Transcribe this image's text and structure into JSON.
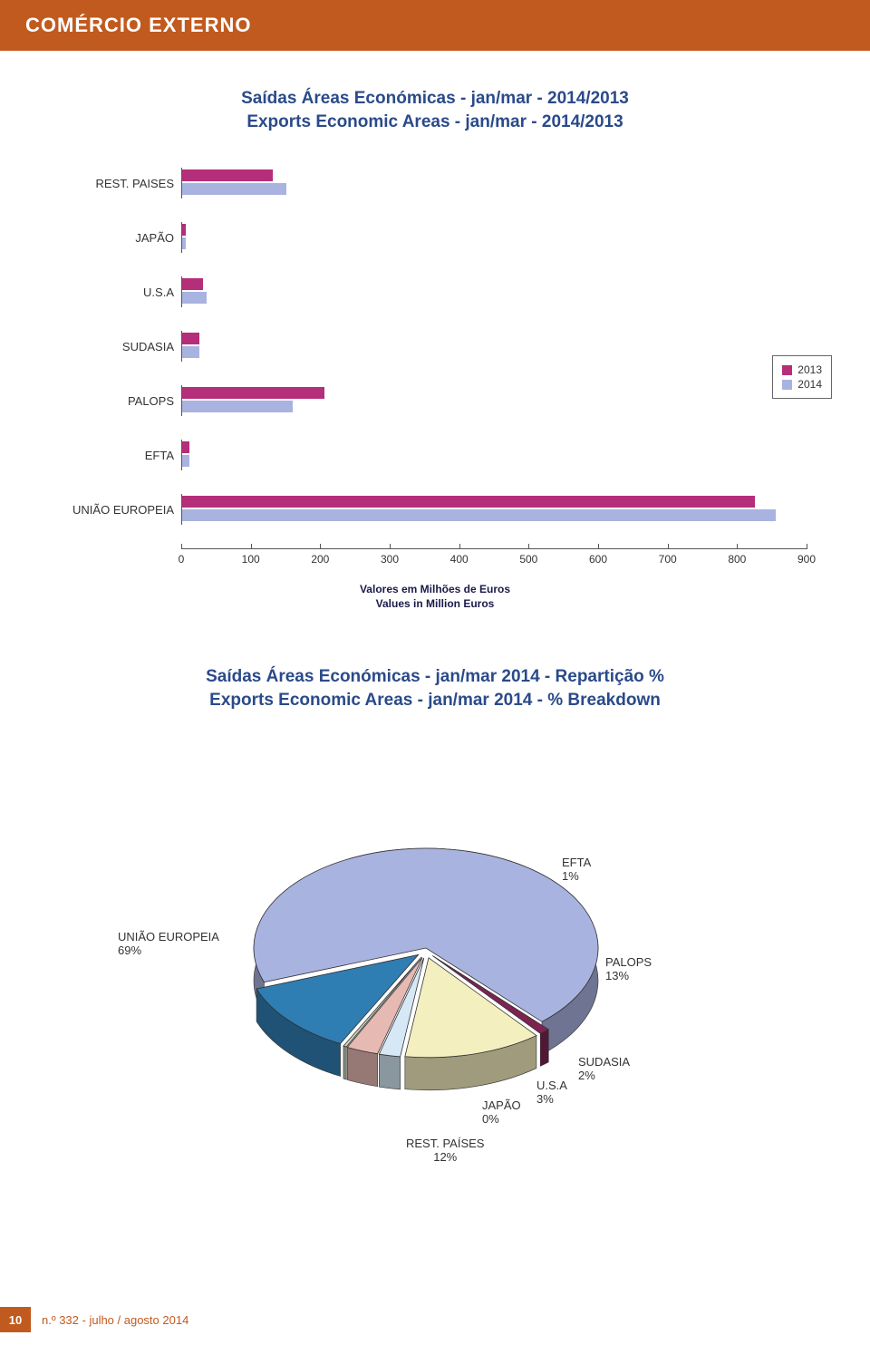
{
  "header": {
    "title": "COMÉRCIO EXTERNO"
  },
  "bar_chart": {
    "title_line1": "Saídas Áreas Económicas - jan/mar - 2014/2013",
    "title_line2": "Exports Economic Areas - jan/mar - 2014/2013",
    "type": "horizontal-bar",
    "xmin": 0,
    "xmax": 900,
    "xtick_step": 100,
    "ticks": [
      0,
      100,
      200,
      300,
      400,
      500,
      600,
      700,
      800,
      900
    ],
    "series": [
      {
        "name": "2013",
        "color": "#b52e7a"
      },
      {
        "name": "2014",
        "color": "#a9b3e0"
      }
    ],
    "categories": [
      {
        "label": "REST. PAISES",
        "v2013": 130,
        "v2014": 150
      },
      {
        "label": "JAPÃO",
        "v2013": 5,
        "v2014": 5
      },
      {
        "label": "U.S.A",
        "v2013": 30,
        "v2014": 35
      },
      {
        "label": "SUDASIA",
        "v2013": 25,
        "v2014": 25
      },
      {
        "label": "PALOPS",
        "v2013": 205,
        "v2014": 160
      },
      {
        "label": "EFTA",
        "v2013": 10,
        "v2014": 10
      },
      {
        "label": "UNIÃO EUROPEIA",
        "v2013": 825,
        "v2014": 855
      }
    ],
    "axis_caption_line1": "Valores em Milhões de Euros",
    "axis_caption_line2": "Values in Million Euros",
    "bar_colors": {
      "s2013": "#b52e7a",
      "s2014": "#a9b3e0"
    }
  },
  "pie_chart": {
    "title_line1": "Saídas Áreas Económicas - jan/mar 2014 - Repartição %",
    "title_line2": "Exports Economic Areas - jan/mar 2014 - % Breakdown",
    "type": "pie-3d-exploded",
    "background_color": "#ffffff",
    "slices": [
      {
        "label": "UNIÃO EUROPEIA",
        "value": 69,
        "color": "#a9b3e0",
        "label_text": "UNIÃO EUROPEIA\n69%"
      },
      {
        "label": "EFTA",
        "value": 1,
        "color": "#7d2352",
        "label_text": "EFTA\n1%"
      },
      {
        "label": "PALOPS",
        "value": 13,
        "color": "#f4efbf",
        "label_text": "PALOPS\n13%"
      },
      {
        "label": "SUDASIA",
        "value": 2,
        "color": "#d6e8f5",
        "label_text": "SUDASIA\n2%"
      },
      {
        "label": "U.S.A",
        "value": 3,
        "color": "#e7b9b3",
        "label_text": "U.S.A\n3%"
      },
      {
        "label": "JAPÃO",
        "value": 0,
        "color": "#c8d8c0",
        "label_text": "JAPÃO\n0%"
      },
      {
        "label": "REST. PAÍSES",
        "value": 12,
        "color": "#2f7eb3",
        "label_text": "REST. PAÍSES\n12%"
      }
    ]
  },
  "footer": {
    "page_number": "10",
    "issue_text": "n.º 332 - julho / agosto 2014"
  }
}
